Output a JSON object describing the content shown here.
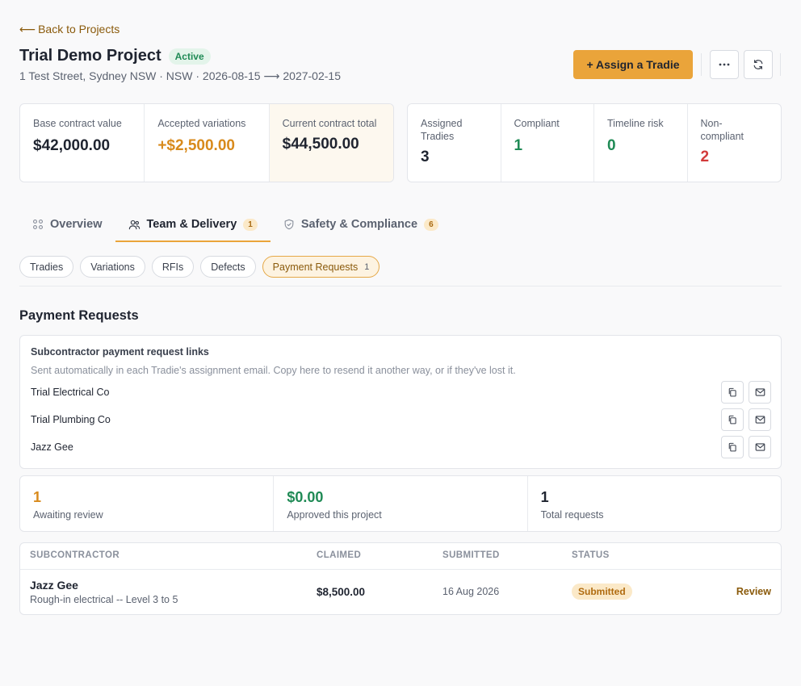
{
  "nav": {
    "back_arrow": "⟵",
    "back_label": "Back to Projects"
  },
  "project": {
    "title": "Trial Demo Project",
    "status": "Active",
    "subtitle": "1 Test Street, Sydney NSW · NSW · 2026-08-15 ⟶ 2027-02-15"
  },
  "actions": {
    "assign_label": "+ Assign a Tradie",
    "more_icon": "ellipsis-icon",
    "refresh_icon": "refresh-icon"
  },
  "contract_stats": [
    {
      "label": "Base contract value",
      "value": "$42,000.00"
    },
    {
      "label": "Accepted variations",
      "value": "+$2,500.00"
    },
    {
      "label": "Current contract total",
      "value": "$44,500.00"
    }
  ],
  "tradie_stats": [
    {
      "label": "Assigned Tradies",
      "value": "3"
    },
    {
      "label": "Compliant",
      "value": "1"
    },
    {
      "label": "Timeline risk",
      "value": "0"
    },
    {
      "label": "Non-compliant",
      "value": "2"
    }
  ],
  "tabs": [
    {
      "label": "Overview",
      "icon": "grid-icon"
    },
    {
      "label": "Team & Delivery",
      "badge": "1",
      "icon": "team-icon"
    },
    {
      "label": "Safety & Compliance",
      "badge": "6",
      "icon": "shield-icon"
    }
  ],
  "subtabs": [
    {
      "label": "Tradies"
    },
    {
      "label": "Variations"
    },
    {
      "label": "RFIs"
    },
    {
      "label": "Defects"
    },
    {
      "label": "Payment Requests",
      "badge": "1"
    }
  ],
  "payment_requests": {
    "title": "Payment Requests",
    "links": {
      "title": "Subcontractor payment request links",
      "description": "Sent automatically in each Tradie's assignment email. Copy here to resend it another way, or if they've lost it.",
      "items": [
        "Trial Electrical Co",
        "Trial Plumbing Co",
        "Jazz Gee"
      ]
    },
    "summary": [
      {
        "value": "1",
        "label": "Awaiting review"
      },
      {
        "value": "$0.00",
        "label": "Approved this project"
      },
      {
        "value": "1",
        "label": "Total requests"
      }
    ],
    "table": {
      "headers": [
        "SUBCONTRACTOR",
        "CLAIMED",
        "SUBMITTED",
        "STATUS"
      ],
      "rows": [
        {
          "name": "Jazz Gee",
          "description": "Rough-in electrical -- Level 3 to 5",
          "claimed": "$8,500.00",
          "submitted": "16 Aug 2026",
          "status": "Submitted",
          "action": "Review"
        }
      ]
    }
  },
  "colors": {
    "accent": "#eaa43a",
    "green": "#1f8a55",
    "red": "#d23a3a",
    "orange": "#d88a1c"
  }
}
